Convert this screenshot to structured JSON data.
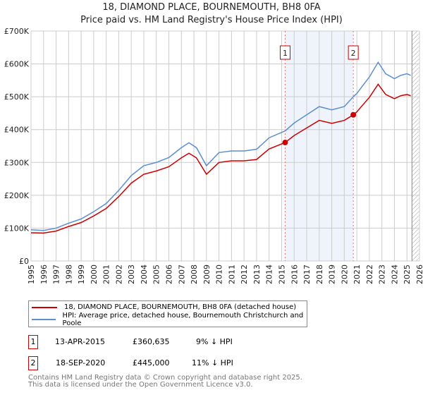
{
  "chart_data": {
    "type": "line",
    "title": "18, DIAMOND PLACE, BOURNEMOUTH, BH8 0FA",
    "subtitle": "Price paid vs. HM Land Registry's House Price Index (HPI)",
    "xlim": [
      1995,
      2026
    ],
    "ylim": [
      0,
      700000
    ],
    "x_ticks": [
      "1995",
      "1996",
      "1997",
      "1998",
      "1999",
      "2000",
      "2001",
      "2002",
      "2003",
      "2004",
      "2005",
      "2006",
      "2007",
      "2008",
      "2009",
      "2010",
      "2011",
      "2012",
      "2013",
      "2014",
      "2015",
      "2016",
      "2017",
      "2018",
      "2019",
      "2020",
      "2021",
      "2022",
      "2023",
      "2024",
      "2025",
      "2026"
    ],
    "y_ticks": [
      {
        "v": 0,
        "label": "£0"
      },
      {
        "v": 100000,
        "label": "£100K"
      },
      {
        "v": 200000,
        "label": "£200K"
      },
      {
        "v": 300000,
        "label": "£300K"
      },
      {
        "v": 400000,
        "label": "£400K"
      },
      {
        "v": 500000,
        "label": "£500K"
      },
      {
        "v": 600000,
        "label": "£600K"
      },
      {
        "v": 700000,
        "label": "£700K"
      }
    ],
    "grid": true,
    "series": [
      {
        "name": "18, DIAMOND PLACE, BOURNEMOUTH, BH8 0FA (detached house)",
        "color": "#cc0000",
        "x": [
          1995,
          1996,
          1997,
          1998,
          1999,
          2000,
          2001,
          2002,
          2003,
          2004,
          2005,
          2006,
          2007,
          2007.6,
          2008.2,
          2009,
          2009.5,
          2010,
          2011,
          2012,
          2013,
          2014,
          2015.28,
          2016,
          2017,
          2018,
          2019,
          2020,
          2020.72,
          2021,
          2022,
          2022.7,
          2023.3,
          2024,
          2024.5,
          2025,
          2025.3
        ],
        "y": [
          86000,
          85000,
          91000,
          105000,
          117000,
          137000,
          160000,
          196000,
          237000,
          264000,
          274000,
          287000,
          314000,
          328000,
          314000,
          264000,
          282000,
          300000,
          305000,
          305000,
          309000,
          341000,
          360635,
          382000,
          405000,
          428000,
          419000,
          428000,
          445000,
          454000,
          498000,
          538000,
          507000,
          494000,
          503000,
          507000,
          503000
        ]
      },
      {
        "name": "HPI: Average price, detached house, Bournemouth Christchurch and Poole",
        "color": "#5b8fd0",
        "x": [
          1995,
          1996,
          1997,
          1998,
          1999,
          2000,
          2001,
          2002,
          2003,
          2004,
          2005,
          2006,
          2007,
          2007.6,
          2008.2,
          2009,
          2009.5,
          2010,
          2011,
          2012,
          2013,
          2014,
          2015.28,
          2016,
          2017,
          2018,
          2019,
          2020,
          2020.72,
          2021,
          2022,
          2022.7,
          2023.3,
          2024,
          2024.5,
          2025,
          2025.3
        ],
        "y": [
          95000,
          93000,
          100000,
          115000,
          128000,
          150000,
          175000,
          215000,
          260000,
          290000,
          300000,
          315000,
          345000,
          360000,
          345000,
          290000,
          310000,
          330000,
          335000,
          335000,
          340000,
          375000,
          396000,
          420000,
          445000,
          470000,
          460000,
          470000,
          500000,
          510000,
          560000,
          605000,
          570000,
          555000,
          565000,
          570000,
          565000
        ]
      }
    ],
    "annotations": [
      {
        "label": "1",
        "x": 2015.28,
        "y": 360635
      },
      {
        "label": "2",
        "x": 2020.72,
        "y": 445000
      }
    ],
    "shaded_range": [
      2015.28,
      2020.72
    ],
    "hatched_from": 2025.4,
    "legend": "below"
  },
  "transactions": [
    {
      "n": "1",
      "date": "13-APR-2015",
      "price": "£360,635",
      "delta": "9% ↓ HPI"
    },
    {
      "n": "2",
      "date": "18-SEP-2020",
      "price": "£445,000",
      "delta": "11% ↓ HPI"
    }
  ],
  "footer": [
    "Contains HM Land Registry data © Crown copyright and database right 2025.",
    "This data is licensed under the Open Government Licence v3.0."
  ]
}
